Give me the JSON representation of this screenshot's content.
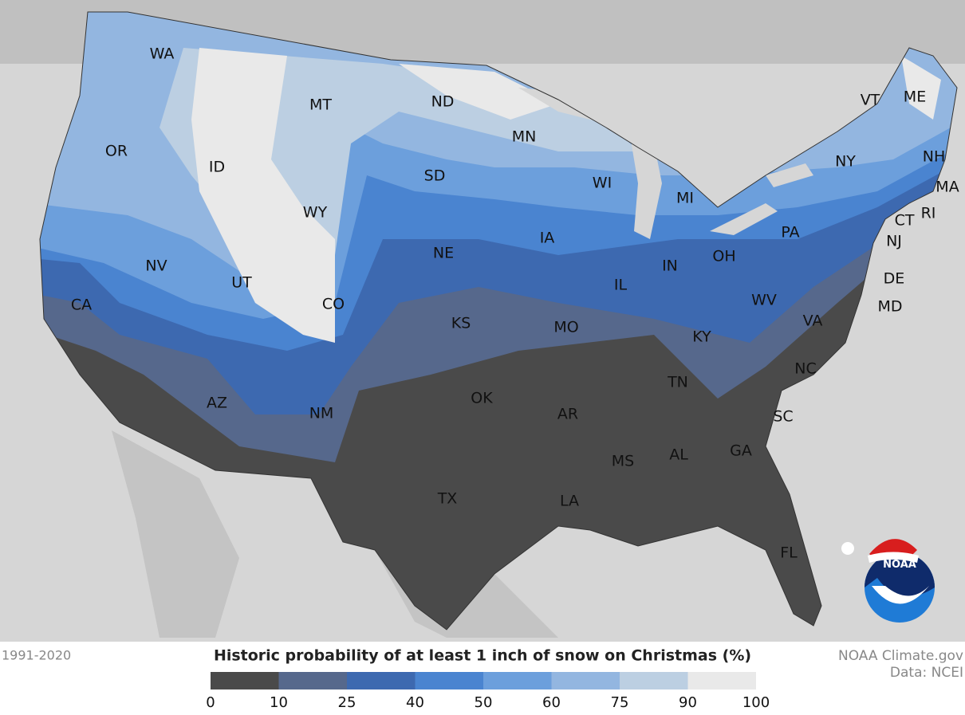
{
  "period": "1991-2020",
  "credit": "NOAA Climate.gov",
  "source": "Data: NCEI",
  "logo": "NOAA",
  "legend": {
    "title": "Historic probability of at least 1 inch of snow on Christmas (%)",
    "bins": [
      0,
      10,
      25,
      40,
      50,
      60,
      75,
      90,
      100
    ],
    "colors": [
      "#4a4a4a",
      "#56688c",
      "#3d69b0",
      "#4a84d0",
      "#6c9fdc",
      "#93b6e0",
      "#bccfe2",
      "#e9e9e9"
    ]
  },
  "states": [
    "WA",
    "OR",
    "CA",
    "ID",
    "NV",
    "MT",
    "WY",
    "UT",
    "AZ",
    "CO",
    "NM",
    "ND",
    "SD",
    "NE",
    "KS",
    "OK",
    "TX",
    "MN",
    "IA",
    "MO",
    "AR",
    "LA",
    "WI",
    "IL",
    "MS",
    "MI",
    "IN",
    "KY",
    "TN",
    "AL",
    "OH",
    "GA",
    "FL",
    "WV",
    "VA",
    "NC",
    "SC",
    "PA",
    "NY",
    "VT",
    "ME",
    "NH",
    "MA",
    "RI",
    "CT",
    "NJ",
    "DE",
    "MD"
  ]
}
